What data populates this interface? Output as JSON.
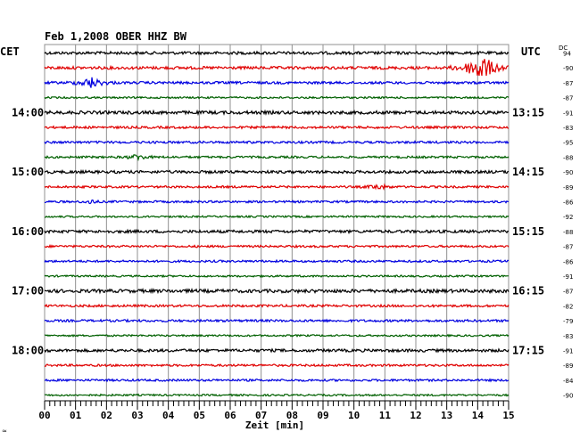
{
  "header": {
    "title": "Feb 1,2008   OBER HHZ BW",
    "left_timezone": "CET",
    "right_timezone": "UTC",
    "dc_label": "DC"
  },
  "footer": {
    "xlabel": "Zeit [min]",
    "corner_mark": "≈"
  },
  "colors": {
    "black": "#000000",
    "red": "#e00000",
    "blue": "#0000e0",
    "green": "#006000",
    "grid": "#909090"
  },
  "chart_data": {
    "type": "line",
    "chart_kind": "helicorder",
    "title": "Feb 1,2008   OBER HHZ BW",
    "xlabel": "Zeit [min]",
    "xlim": [
      0,
      15
    ],
    "x_ticks": [
      "00",
      "01",
      "02",
      "03",
      "04",
      "05",
      "06",
      "07",
      "08",
      "09",
      "10",
      "11",
      "12",
      "13",
      "14",
      "15"
    ],
    "row_minutes": 15,
    "grid": true,
    "left_hour_labels": [
      {
        "row": 4,
        "label": "14:00"
      },
      {
        "row": 8,
        "label": "15:00"
      },
      {
        "row": 12,
        "label": "16:00"
      },
      {
        "row": 16,
        "label": "17:00"
      },
      {
        "row": 20,
        "label": "18:00"
      }
    ],
    "right_hour_labels": [
      {
        "row": 4,
        "label": "13:15"
      },
      {
        "row": 8,
        "label": "14:15"
      },
      {
        "row": 12,
        "label": "15:15"
      },
      {
        "row": 16,
        "label": "16:15"
      },
      {
        "row": 20,
        "label": "17:15"
      }
    ],
    "color_cycle": [
      "black",
      "red",
      "blue",
      "green"
    ],
    "rows": [
      {
        "dc": "94",
        "noise": 1.6
      },
      {
        "dc": "-90",
        "noise": 1.6,
        "events": [
          {
            "minute": 14.1,
            "amplitude": 16,
            "duration": 1.0
          }
        ]
      },
      {
        "dc": "-87",
        "noise": 1.4,
        "events": [
          {
            "minute": 1.5,
            "amplitude": 6,
            "duration": 0.8
          }
        ]
      },
      {
        "dc": "-87",
        "noise": 1.0
      },
      {
        "dc": "-91",
        "noise": 1.8
      },
      {
        "dc": "-83",
        "noise": 1.3
      },
      {
        "dc": "-95",
        "noise": 1.3
      },
      {
        "dc": "-88",
        "noise": 1.2,
        "events": [
          {
            "minute": 3.0,
            "amplitude": 3,
            "duration": 0.6
          }
        ]
      },
      {
        "dc": "-90",
        "noise": 1.6
      },
      {
        "dc": "-89",
        "noise": 1.2,
        "events": [
          {
            "minute": 10.8,
            "amplitude": 3,
            "duration": 0.6
          }
        ]
      },
      {
        "dc": "-86",
        "noise": 1.2,
        "events": [
          {
            "minute": 1.5,
            "amplitude": 3,
            "duration": 0.3
          }
        ]
      },
      {
        "dc": "-92",
        "noise": 1.0
      },
      {
        "dc": "-88",
        "noise": 1.6
      },
      {
        "dc": "-87",
        "noise": 1.2
      },
      {
        "dc": "-86",
        "noise": 1.2
      },
      {
        "dc": "-91",
        "noise": 1.0
      },
      {
        "dc": "-87",
        "noise": 1.9
      },
      {
        "dc": "-82",
        "noise": 1.3
      },
      {
        "dc": "-79",
        "noise": 1.3
      },
      {
        "dc": "-83",
        "noise": 1.0
      },
      {
        "dc": "-91",
        "noise": 1.6
      },
      {
        "dc": "-89",
        "noise": 1.2
      },
      {
        "dc": "-84",
        "noise": 1.2
      },
      {
        "dc": "-90",
        "noise": 1.0
      }
    ]
  }
}
